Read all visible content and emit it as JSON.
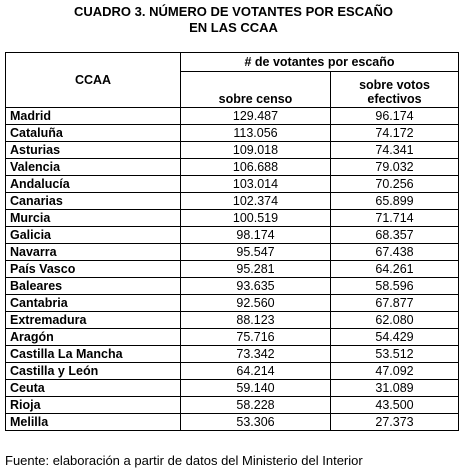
{
  "header": {
    "title": [
      "CUADRO 3. NÚMERO DE VOTANTES POR ESCAÑO",
      "EN LAS CCAA"
    ]
  },
  "table": {
    "group_header": "# de votantes por escaño",
    "columns": [
      "CCAA",
      "sobre censo",
      "sobre votos efectivos"
    ],
    "rows": [
      [
        "Madrid",
        "129.487",
        "96.174"
      ],
      [
        "Cataluña",
        "113.056",
        "74.172"
      ],
      [
        "Asturias",
        "109.018",
        "74.341"
      ],
      [
        "Valencia",
        "106.688",
        "79.032"
      ],
      [
        "Andalucía",
        "103.014",
        "70.256"
      ],
      [
        "Canarias",
        "102.374",
        "65.899"
      ],
      [
        "Murcia",
        "100.519",
        "71.714"
      ],
      [
        "Galicia",
        "98.174",
        "68.357"
      ],
      [
        "Navarra",
        "95.547",
        "67.438"
      ],
      [
        "País Vasco",
        "95.281",
        "64.261"
      ],
      [
        "Baleares",
        "93.635",
        "58.596"
      ],
      [
        "Cantabria",
        "92.560",
        "67.877"
      ],
      [
        "Extremadura",
        "88.123",
        "62.080"
      ],
      [
        "Aragón",
        "75.716",
        "54.429"
      ],
      [
        "Castilla La Mancha",
        "73.342",
        "53.512"
      ],
      [
        "Castilla y León",
        "64.214",
        "47.092"
      ],
      [
        "Ceuta",
        "59.140",
        "31.089"
      ],
      [
        "Rioja",
        "58.228",
        "43.500"
      ],
      [
        "Melilla",
        "53.306",
        "27.373"
      ]
    ]
  },
  "footer": {
    "source": "Fuente: elaboración a partir de datos del Ministerio del Interior"
  }
}
